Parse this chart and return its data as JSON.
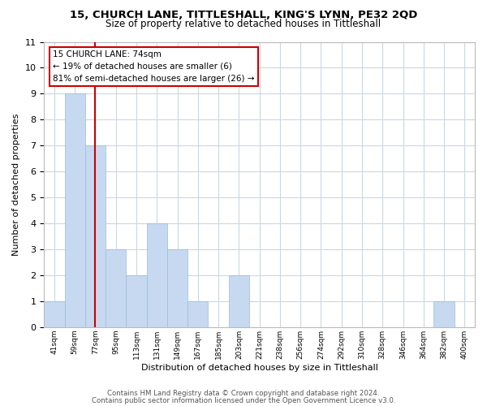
{
  "title": "15, CHURCH LANE, TITTLESHALL, KING'S LYNN, PE32 2QD",
  "subtitle": "Size of property relative to detached houses in Tittleshall",
  "xlabel": "Distribution of detached houses by size in Tittleshall",
  "ylabel": "Number of detached properties",
  "bin_labels": [
    "41sqm",
    "59sqm",
    "77sqm",
    "95sqm",
    "113sqm",
    "131sqm",
    "149sqm",
    "167sqm",
    "185sqm",
    "203sqm",
    "221sqm",
    "238sqm",
    "256sqm",
    "274sqm",
    "292sqm",
    "310sqm",
    "328sqm",
    "346sqm",
    "364sqm",
    "382sqm",
    "400sqm"
  ],
  "bar_values": [
    1,
    9,
    7,
    3,
    2,
    4,
    3,
    1,
    0,
    2,
    0,
    0,
    0,
    0,
    0,
    0,
    0,
    0,
    0,
    1,
    0
  ],
  "bar_color": "#c6d9f0",
  "bar_edge_color": "#9bbcd8",
  "highlight_line_bin_index": 2,
  "annotation_title": "15 CHURCH LANE: 74sqm",
  "annotation_line1": "← 19% of detached houses are smaller (6)",
  "annotation_line2": "81% of semi-detached houses are larger (26) →",
  "ylim": [
    0,
    11
  ],
  "yticks": [
    0,
    1,
    2,
    3,
    4,
    5,
    6,
    7,
    8,
    9,
    10,
    11
  ],
  "footer1": "Contains HM Land Registry data © Crown copyright and database right 2024.",
  "footer2": "Contains public sector information licensed under the Open Government Licence v3.0.",
  "bg_color": "#ffffff",
  "grid_color": "#c8d8e8",
  "annotation_box_color": "#ffffff",
  "annotation_box_edge": "#cc0000",
  "highlight_line_color": "#cc0000"
}
